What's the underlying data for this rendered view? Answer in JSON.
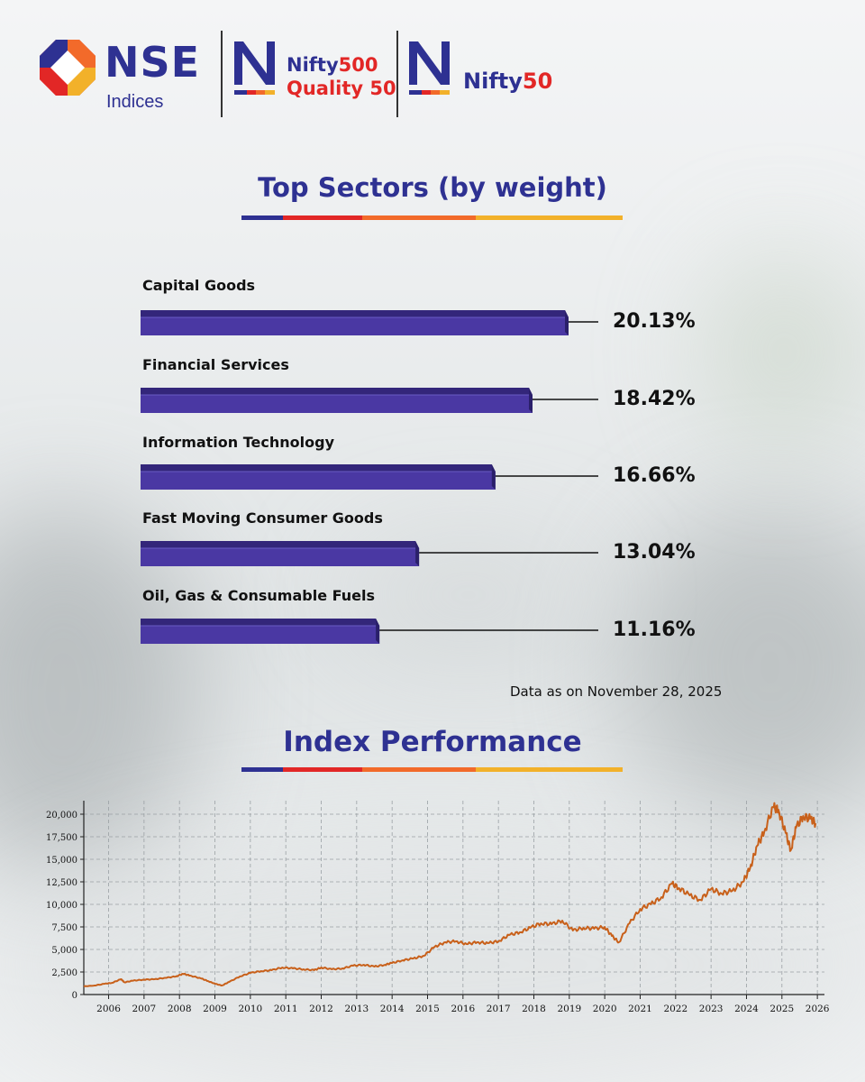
{
  "header": {
    "nse_name": "NSE",
    "nse_sub": "Indices",
    "brand1_part1": "Nifty",
    "brand1_part2": "500",
    "brand1_line2": "Quality 50",
    "brand2_part1": "Nifty",
    "brand2_part2": "50"
  },
  "colors": {
    "primary": "#2e3192",
    "red": "#e22726",
    "orange": "#f26a2a",
    "yellow": "#f2b12a",
    "bar": "#4a38a3",
    "line": "#c8601a"
  },
  "sectors_title": "Top Sectors (by weight)",
  "performance_title": "Index Performance",
  "data_as_on": "Data as on November 28, 2025",
  "chart_data": [
    {
      "type": "bar",
      "orientation": "horizontal",
      "title": "Top Sectors (by weight)",
      "categories": [
        "Capital Goods",
        "Financial Services",
        "Information Technology",
        "Fast Moving Consumer Goods",
        "Oil, Gas & Consumable Fuels"
      ],
      "values": [
        20.13,
        18.42,
        16.66,
        13.04,
        11.16
      ],
      "value_labels": [
        "20.13%",
        "18.42%",
        "16.66%",
        "13.04%",
        "11.16%"
      ],
      "xlim": [
        0,
        20.13
      ]
    },
    {
      "type": "line",
      "title": "Index Performance",
      "ylim": [
        0,
        21500
      ],
      "yticks": [
        0,
        2500,
        5000,
        7500,
        10000,
        12500,
        15000,
        17500,
        20000
      ],
      "ytick_labels": [
        "0",
        "2,500",
        "5,000",
        "7,500",
        "10,000",
        "12,500",
        "15,000",
        "17,500",
        "20,000"
      ],
      "xlim": [
        2005.3,
        2026.2
      ],
      "xticks": [
        2006,
        2007,
        2008,
        2009,
        2010,
        2011,
        2012,
        2013,
        2014,
        2015,
        2016,
        2017,
        2018,
        2019,
        2020,
        2021,
        2022,
        2023,
        2024,
        2025,
        2026
      ],
      "xtick_labels": [
        "2006",
        "2007",
        "2008",
        "2009",
        "2010",
        "2011",
        "2012",
        "2013",
        "2014",
        "2015",
        "2016",
        "2017",
        "2018",
        "2019",
        "2020",
        "2021",
        "2022",
        "2023",
        "2024",
        "2025",
        "2026"
      ],
      "grid": true,
      "x": [
        2005.3,
        2005.6,
        2005.9,
        2006.1,
        2006.35,
        2006.45,
        2006.7,
        2007.0,
        2007.3,
        2007.6,
        2007.9,
        2008.1,
        2008.3,
        2008.6,
        2008.8,
        2009.0,
        2009.2,
        2009.4,
        2009.7,
        2010.0,
        2010.3,
        2010.6,
        2010.9,
        2011.2,
        2011.5,
        2011.8,
        2012.0,
        2012.3,
        2012.6,
        2012.9,
        2013.2,
        2013.5,
        2013.8,
        2014.0,
        2014.3,
        2014.6,
        2014.9,
        2015.2,
        2015.5,
        2015.8,
        2016.1,
        2016.4,
        2016.7,
        2017.0,
        2017.3,
        2017.6,
        2017.9,
        2018.2,
        2018.5,
        2018.8,
        2019.1,
        2019.4,
        2019.7,
        2020.0,
        2020.2,
        2020.4,
        2020.7,
        2021.0,
        2021.3,
        2021.6,
        2021.9,
        2022.1,
        2022.4,
        2022.7,
        2023.0,
        2023.3,
        2023.6,
        2023.9,
        2024.1,
        2024.3,
        2024.5,
        2024.75,
        2024.9,
        2025.1,
        2025.25,
        2025.4,
        2025.6,
        2025.8,
        2025.95
      ],
      "y": [
        900,
        1000,
        1200,
        1300,
        1700,
        1350,
        1550,
        1650,
        1700,
        1850,
        2000,
        2300,
        2100,
        1800,
        1500,
        1200,
        1000,
        1400,
        2000,
        2400,
        2600,
        2700,
        3000,
        2900,
        2800,
        2700,
        3000,
        2800,
        2900,
        3200,
        3300,
        3100,
        3300,
        3500,
        3800,
        4000,
        4300,
        5300,
        5800,
        5900,
        5600,
        5800,
        5700,
        5900,
        6600,
        6900,
        7400,
        7900,
        7800,
        8200,
        7100,
        7400,
        7300,
        7500,
        6500,
        5800,
        7900,
        9500,
        10000,
        10800,
        12300,
        11800,
        11000,
        10500,
        11700,
        11200,
        11500,
        12500,
        14000,
        16500,
        18000,
        20800,
        20500,
        18000,
        16000,
        18500,
        19800,
        19500,
        19000
      ]
    }
  ]
}
